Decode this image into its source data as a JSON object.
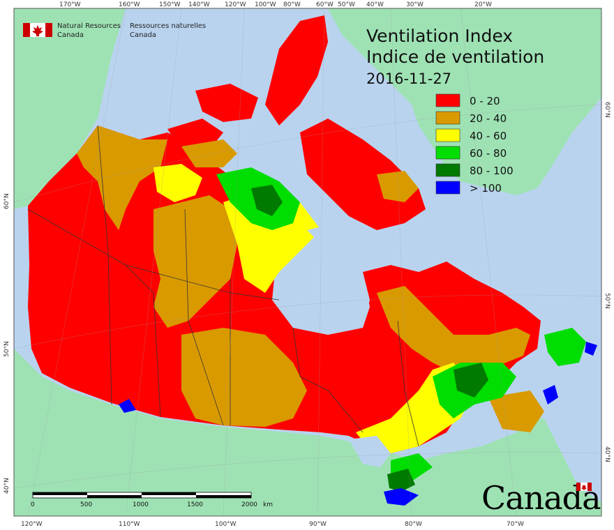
{
  "title": {
    "en": "Ventilation Index",
    "fr": "Indice de ventilation",
    "date": "2016-11-27"
  },
  "organization": {
    "en_line1": "Natural Resources",
    "en_line2": "Canada",
    "fr_line1": "Ressources naturelles",
    "fr_line2": "Canada"
  },
  "legend": [
    {
      "label": "0 - 20",
      "color": "#ff0000"
    },
    {
      "label": "20 - 40",
      "color": "#d99a00"
    },
    {
      "label": "40 - 60",
      "color": "#ffff00"
    },
    {
      "label": "60 - 80",
      "color": "#00dd00"
    },
    {
      "label": "80 - 100",
      "color": "#007a00"
    },
    {
      "label": "> 100",
      "color": "#0000ff"
    }
  ],
  "top_ticks": [
    "170°W",
    "160°W",
    "150°W",
    "140°W",
    "120°W",
    "100°W",
    "80°W",
    "60°W",
    "50°W",
    "40°W",
    "30°W",
    "20°W"
  ],
  "bottom_ticks": [
    "120°W",
    "110°W",
    "100°W",
    "90°W",
    "80°W",
    "70°W"
  ],
  "left_ticks": [
    "60°N",
    "50°N",
    "40°N"
  ],
  "right_ticks": [
    "60°N",
    "50°N",
    "40°N"
  ],
  "scale_bar": {
    "labels": [
      "0",
      "500",
      "1000",
      "1500",
      "2000"
    ],
    "unit": "km"
  },
  "wordmark": "Canada",
  "colors": {
    "ocean": "#b9d3ef",
    "land_other": "#9ee2b4",
    "water_inland": "#b9d3ef"
  }
}
